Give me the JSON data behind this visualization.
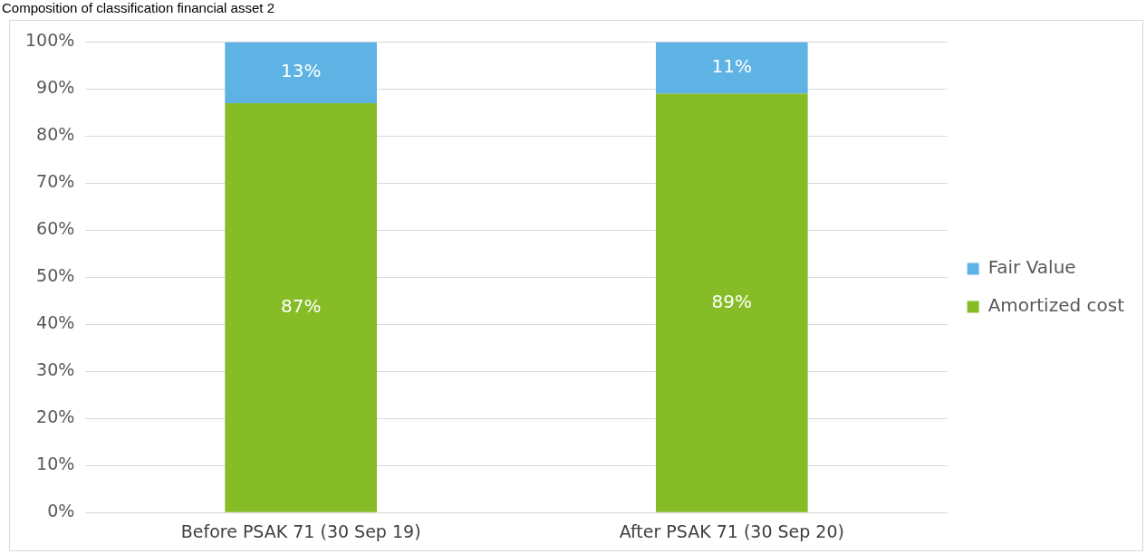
{
  "chart_data": {
    "type": "bar",
    "title": "Composition of classification financial asset 2",
    "categories": [
      "Before PSAK 71 (30 Sep 19)",
      "After PSAK 71 (30 Sep 20)"
    ],
    "stacked": true,
    "series": [
      {
        "name": "Amortized cost",
        "color": "#86bc25",
        "values": [
          87,
          89
        ],
        "value_labels": [
          "87%",
          "89%"
        ]
      },
      {
        "name": "Fair Value",
        "color": "#5eb3e4",
        "values": [
          13,
          11
        ],
        "value_labels": [
          "13%",
          "11%"
        ]
      }
    ],
    "ylim": [
      0,
      100
    ],
    "yticks": [
      {
        "value": 0,
        "label": "0%"
      },
      {
        "value": 10,
        "label": "10%"
      },
      {
        "value": 20,
        "label": "20%"
      },
      {
        "value": 30,
        "label": "30%"
      },
      {
        "value": 40,
        "label": "40%"
      },
      {
        "value": 50,
        "label": "50%"
      },
      {
        "value": 60,
        "label": "60%"
      },
      {
        "value": 70,
        "label": "70%"
      },
      {
        "value": 80,
        "label": "80%"
      },
      {
        "value": 90,
        "label": "90%"
      },
      {
        "value": 100,
        "label": "100%"
      }
    ],
    "grid": "y",
    "legend": "right"
  }
}
